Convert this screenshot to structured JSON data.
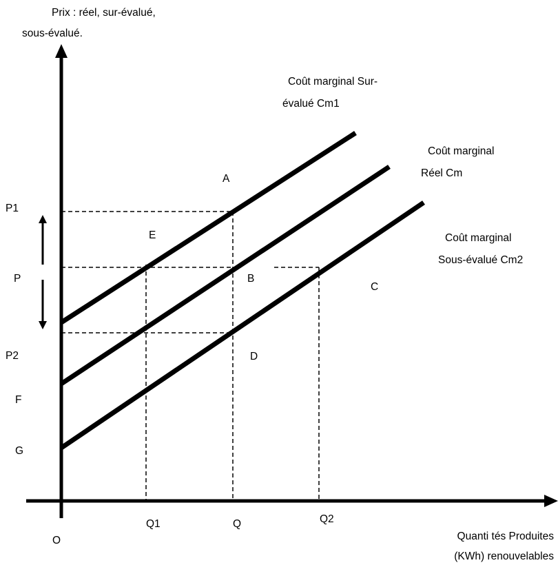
{
  "y_axis_label": [
    "Prix : réel, sur-évalué,",
    "sous-évalué."
  ],
  "x_axis_label": [
    "Quanti  tés Produites",
    "(KWh) renouvelables"
  ],
  "origin_label": "O",
  "price_labels": {
    "p1": "P1",
    "p": "P",
    "p2": "P2",
    "f": "F",
    "g": "G"
  },
  "quantity_labels": {
    "q1": "Q1",
    "q": "Q",
    "q2": "Q2"
  },
  "curves": [
    {
      "id": "cm1",
      "label": [
        "Coût marginal  Sur-",
        "évalué Cm1"
      ]
    },
    {
      "id": "cm",
      "label": [
        "Coût marginal",
        "Réel Cm"
      ]
    },
    {
      "id": "cm2",
      "label": [
        "Coût marginal",
        "Sous-évalué Cm2"
      ]
    }
  ],
  "point_labels": {
    "a": "A",
    "b": "B",
    "c": "C",
    "d": "D",
    "e": "E"
  }
}
